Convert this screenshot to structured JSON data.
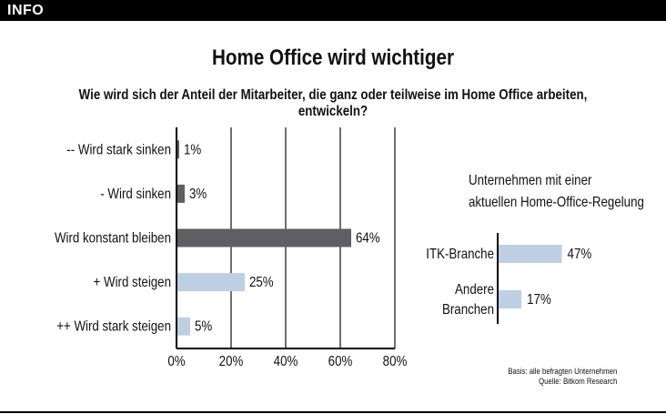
{
  "header": {
    "badge": "INFO"
  },
  "title": "Home Office wird wichtiger",
  "subtitle": "Wie wird sich der Anteil der Mitarbeiter, die ganz oder teilweise im Home Office arbeiten, entwickeln?",
  "colors": {
    "dark_bar": "#5f5f62",
    "light_bar": "#bfcfe3",
    "grid": "#222222",
    "band": "#000000"
  },
  "chart_data": [
    {
      "type": "bar",
      "orientation": "horizontal",
      "categories": [
        "--   Wird stark sinken",
        "-  Wird sinken",
        "Wird konstant bleiben",
        "+   Wird steigen",
        "++   Wird stark steigen"
      ],
      "values": [
        1,
        3,
        64,
        25,
        5
      ],
      "data_labels": [
        "1%",
        "3%",
        "64%",
        "25%",
        "5%"
      ],
      "bar_colors": [
        "#5f5f62",
        "#5f5f62",
        "#5f5f62",
        "#bfcfe3",
        "#bfcfe3"
      ],
      "xlim": [
        0,
        80
      ],
      "xticks": [
        0,
        20,
        40,
        60,
        80
      ],
      "xtick_labels": [
        "0%",
        "20%",
        "40%",
        "60%",
        "80%"
      ],
      "grid": true
    },
    {
      "type": "bar",
      "orientation": "horizontal",
      "title_lines": [
        "Unternehmen mit einer",
        "aktuellen Home-Office-Regelung"
      ],
      "categories": [
        [
          "ITK-Branche"
        ],
        [
          "Andere",
          "Branchen"
        ]
      ],
      "values": [
        47,
        17
      ],
      "data_labels": [
        "47%",
        "17%"
      ],
      "bar_colors": [
        "#bfcfe3",
        "#bfcfe3"
      ],
      "grid": false
    }
  ],
  "footer": {
    "basis": "Basis: alle befragten Unternehmen",
    "source": "Quelle: Bitkom Research"
  }
}
